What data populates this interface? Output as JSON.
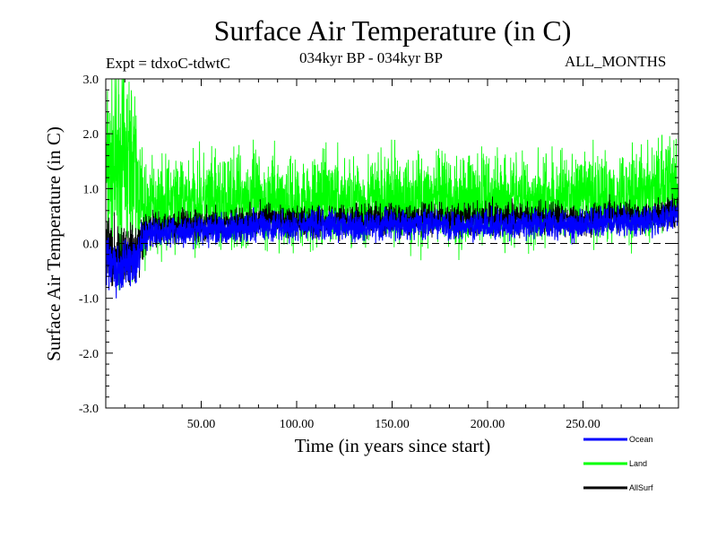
{
  "chart_data": {
    "type": "line",
    "title": "Surface Air Temperature (in C)",
    "subtitle": "034kyr BP - 034kyr BP",
    "expt_label": "Expt = tdxoC-tdwtC",
    "period_label": "ALL_MONTHS",
    "xlabel": "Time (in years since start)",
    "ylabel": "Surface Air Temperature (in C)",
    "xlim": [
      0,
      300
    ],
    "ylim": [
      -3.0,
      3.0
    ],
    "x_ticks": [
      "50.00",
      "100.00",
      "150.00",
      "200.00",
      "250.00"
    ],
    "x_tick_values": [
      50,
      100,
      150,
      200,
      250
    ],
    "y_ticks": [
      "-3.0",
      "-2.0",
      "-1.0",
      "0.0",
      "1.0",
      "2.0",
      "3.0"
    ],
    "y_tick_values": [
      -3,
      -2,
      -1,
      0,
      1,
      2,
      3
    ],
    "reference_line": 0.0,
    "grid": false,
    "legend_position": "bottom-right",
    "x": [
      0,
      5,
      10,
      15,
      20,
      25,
      30,
      40,
      50,
      60,
      70,
      80,
      90,
      100,
      110,
      120,
      130,
      140,
      150,
      160,
      170,
      180,
      190,
      200,
      210,
      220,
      230,
      240,
      250,
      260,
      270,
      280,
      290,
      297
    ],
    "series": [
      {
        "name": "Land",
        "color": "#00ff00",
        "values": [
          1.2,
          1.4,
          1.5,
          1.3,
          0.5,
          0.7,
          0.7,
          0.75,
          0.75,
          0.7,
          0.8,
          0.8,
          0.75,
          0.75,
          0.8,
          0.8,
          0.75,
          0.8,
          0.8,
          0.8,
          0.8,
          0.75,
          0.8,
          0.8,
          0.85,
          0.8,
          0.8,
          0.85,
          0.85,
          0.85,
          0.9,
          0.9,
          1.0,
          1.1
        ],
        "amplitude": [
          1.5,
          1.5,
          1.6,
          1.4,
          0.8,
          0.7,
          0.7,
          0.7,
          0.75,
          0.75,
          0.75,
          0.75,
          0.7,
          0.7,
          0.7,
          0.7,
          0.7,
          0.7,
          0.7,
          0.7,
          0.7,
          0.7,
          0.75,
          0.75,
          0.7,
          0.7,
          0.7,
          0.7,
          0.7,
          0.7,
          0.7,
          0.7,
          0.75,
          0.75
        ]
      },
      {
        "name": "Ocean",
        "color": "#0000ff",
        "values": [
          -0.3,
          -0.45,
          -0.4,
          -0.4,
          0.1,
          0.2,
          0.2,
          0.22,
          0.25,
          0.25,
          0.3,
          0.35,
          0.3,
          0.3,
          0.32,
          0.35,
          0.3,
          0.32,
          0.35,
          0.33,
          0.35,
          0.3,
          0.33,
          0.35,
          0.33,
          0.33,
          0.35,
          0.33,
          0.35,
          0.4,
          0.4,
          0.4,
          0.45,
          0.5
        ],
        "amplitude": [
          0.4,
          0.4,
          0.4,
          0.4,
          0.25,
          0.2,
          0.2,
          0.22,
          0.22,
          0.22,
          0.22,
          0.22,
          0.22,
          0.22,
          0.22,
          0.22,
          0.22,
          0.22,
          0.22,
          0.22,
          0.22,
          0.22,
          0.22,
          0.22,
          0.22,
          0.22,
          0.22,
          0.22,
          0.22,
          0.22,
          0.22,
          0.22,
          0.22,
          0.22
        ]
      },
      {
        "name": "AllSurf",
        "color": "#000000",
        "values": [
          -0.1,
          -0.2,
          -0.2,
          -0.2,
          0.2,
          0.3,
          0.3,
          0.35,
          0.35,
          0.35,
          0.4,
          0.45,
          0.4,
          0.4,
          0.42,
          0.45,
          0.4,
          0.42,
          0.45,
          0.45,
          0.45,
          0.4,
          0.45,
          0.45,
          0.45,
          0.45,
          0.45,
          0.45,
          0.45,
          0.5,
          0.5,
          0.5,
          0.55,
          0.6
        ],
        "amplitude": [
          0.5,
          0.5,
          0.5,
          0.5,
          0.3,
          0.25,
          0.25,
          0.25,
          0.25,
          0.25,
          0.25,
          0.25,
          0.25,
          0.25,
          0.25,
          0.25,
          0.25,
          0.25,
          0.25,
          0.25,
          0.25,
          0.25,
          0.25,
          0.25,
          0.25,
          0.25,
          0.25,
          0.25,
          0.25,
          0.25,
          0.25,
          0.25,
          0.25,
          0.25
        ]
      }
    ]
  }
}
